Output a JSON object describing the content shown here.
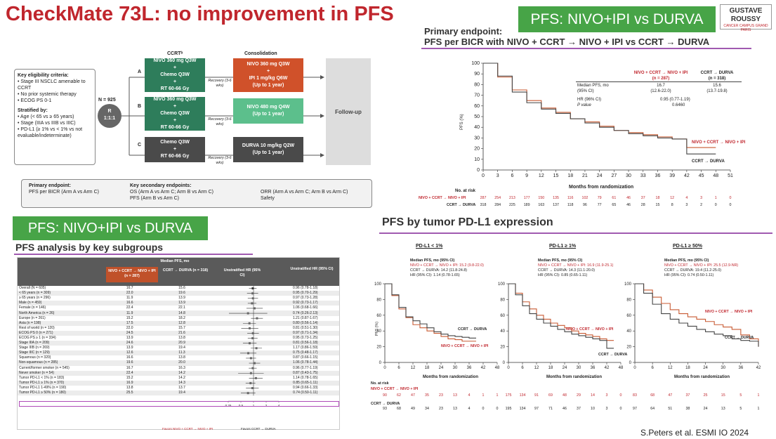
{
  "title": "CheckMate 73L: no improvement in PFS",
  "badge_top": "PFS: NIVO+IPI vs DURVA",
  "badge_left": "PFS: NIVO+IPI vs DURVA",
  "logo": {
    "line1": "GUSTAVE",
    "line2": "ROUSSY",
    "small": "CANCER CAMPUS GRAND PARIS"
  },
  "endpoint": {
    "line1": "Primary endpoint:",
    "line2": "PFS per BICR with NIVO + CCRT → NIVO + IPI vs CCRT → DURVA"
  },
  "design": {
    "criteria_title": "Key eligibility criteria:",
    "criteria": [
      "Stage III NSCLC amenable to CCRT",
      "No prior systemic therapy",
      "ECOG PS 0-1"
    ],
    "strat_title": "Stratified by:",
    "strat": [
      "Age (< 65 vs ≥ 65 years)",
      "Stage (IIIA vs IIIB vs IIIC)",
      "PD-L1 (≥ 1% vs < 1% vs not evaluable/indeterminate)"
    ],
    "n": "N = 925",
    "r": "R",
    "ratio": "1:1:1",
    "ccrt_head": "CCRTᵇ",
    "cons_head": "Consolidation",
    "armA": "A",
    "armB": "B",
    "armC": "C",
    "ccrtA": [
      "NIVO 360 mg Q3W",
      "+",
      "Chemo Q3W",
      "+",
      "RT 60-66 Gy"
    ],
    "ccrtB": [
      "NIVO 360 mg Q3W",
      "+",
      "Chemo Q3W",
      "+",
      "RT 60-66 Gy"
    ],
    "ccrtC": [
      "Chemo Q3W",
      "+",
      "RT 60-66 Gy"
    ],
    "recovery": "Recovery (3-6 wks)",
    "consA": [
      "NIVO 360 mg Q3W",
      "+",
      "IPI 1 mg/kg Q6W",
      "(Up to 1 year)"
    ],
    "consB": [
      "NIVO 480 mg Q4W",
      "(Up to 1 year)"
    ],
    "consC": [
      "DURVA 10 mg/kg Q2W",
      "(Up to 1 year)"
    ],
    "follow": "Follow-up",
    "prim_title": "Primary endpoint:",
    "prim": "PFS per BICR (Arm A vs Arm C)",
    "sec_title": "Key secondary endpoints:",
    "sec1": "OS (Arm A vs Arm C; Arm B vs Arm C)",
    "sec2": "PFS (Arm B vs Arm C)",
    "sec3": "ORR (Arm A vs Arm C; Arm B vs Arm C)",
    "sec4": "Safety"
  },
  "km": {
    "ylabel": "PFS (%)",
    "xlabel": "Months from randomization",
    "col1": "NIVO + CCRT → NIVO + IPI",
    "col1n": "(n = 287)",
    "col2": "CCRT → DURVA",
    "col2n": "(n = 318)",
    "r1": "Median PFS, mo",
    "r1b": "(95% CI)",
    "v1": "16.7",
    "v1b": "(12.6-22.0)",
    "v2": "15.6",
    "v2b": "(13.7-19.8)",
    "hr": "HR (96% CI)",
    "hrv": "0.95 (0.77-1.19)",
    "p": "P value",
    "pv": "0.6460",
    "lab1": "NIVO + CCRT → NIVO + IPI",
    "lab2": "CCRT → DURVA",
    "risk_title": "No. at risk",
    "risk1_label": "NIVO + CCRT → NIVO + IPI",
    "risk2_label": "CCRT → DURVA",
    "risk1": [
      "287",
      "254",
      "213",
      "177",
      "150",
      "135",
      "116",
      "102",
      "79",
      "61",
      "46",
      "37",
      "18",
      "12",
      "4",
      "3",
      "1",
      "0"
    ],
    "risk2": [
      "318",
      "284",
      "225",
      "189",
      "163",
      "137",
      "118",
      "96",
      "77",
      "65",
      "46",
      "28",
      "15",
      "8",
      "3",
      "2",
      "0",
      "0"
    ]
  },
  "subgroups": {
    "title": "PFS analysis by key subgroups",
    "head_median": "Median PFS, mo",
    "head_a": "NIVO + CCRT → NIVO + IPI (n = 287)",
    "head_c": "CCRT → DURVA (n = 318)",
    "head_hr": "Unstratified HR (95% CI)",
    "rows": [
      [
        "Overall (N = 605)",
        "16.7",
        "15.6",
        "0.96 (0.78-1.18)"
      ],
      [
        "< 65 years (n = 309)",
        "22.0",
        "19.6",
        "0.95 (0.70-1.29)"
      ],
      [
        "≥ 65 years (n = 296)",
        "11.9",
        "13.9",
        "0.97 (0.73-1.28)"
      ],
      [
        "Male (n = 459)",
        "16.6",
        "13.9",
        "0.92 (0.73-1.17)"
      ],
      [
        "Female (n = 146)",
        "22.4",
        "22.1",
        "1.06 (0.68-1.66)"
      ],
      [
        "North America (n = 26)",
        "11.9",
        "14.8",
        "0.74 (0.26-2.13)"
      ],
      [
        "Europe (n = 261)",
        "15.2",
        "18.2",
        "1.21 (0.87-1.67)"
      ],
      [
        "Asia (n = 198)",
        "17.5",
        "12.8",
        "0.80 (0.56-1.14)"
      ],
      [
        "Rest of world (n = 120)",
        "22.0",
        "15.7",
        "0.81 (0.51-1.30)"
      ],
      [
        "ECOG PS 0 (n = 271)",
        "24.5",
        "21.6",
        "0.97 (0.71-1.34)"
      ],
      [
        "ECOG PS ≥ 1 (n = 334)",
        "13.9",
        "13.8",
        "0.95 (0.73-1.25)"
      ],
      [
        "Stage IIIA (n = 209)",
        "24.6",
        "20.9",
        "0.81 (0.56-1.18)"
      ],
      [
        "Stage IIIB (n = 269)",
        "13.9",
        "19.4",
        "1.17 (0.86-1.59)"
      ],
      [
        "Stage IIIC (n = 129)",
        "12.6",
        "11.3",
        "0.75 (0.48-1.17)"
      ],
      [
        "Squamous (n = 320)",
        "16.6",
        "13.8",
        "0.87 (0.66-1.15)"
      ],
      [
        "Non-squamous (n = 285)",
        "19.6",
        "20.0",
        "1.06 (0.78-1.44)"
      ],
      [
        "Current/former smoker (n = 545)",
        "16.7",
        "16.3",
        "0.96 (0.77-1.19)"
      ],
      [
        "Never smoker (n = 54)",
        "22.4",
        "14.2",
        "0.87 (0.43-1.75)"
      ],
      [
        "Tumor PD-L1 < 1% (n = 183)",
        "15.2",
        "14.2",
        "1.14 (0.78-1.65)"
      ],
      [
        "Tumor PD-L1 ≥ 1% (n = 370)",
        "16.9",
        "14.3",
        "0.85 (0.65-1.11)"
      ],
      [
        "Tumor PD-L1 1-49% (n = 190)",
        "13.8",
        "13.7",
        "0.94 (0.66-1.33)"
      ],
      [
        "Tumor PD-L1 ≥ 50% (n = 180)",
        "25.5",
        "19.4",
        "0.74 (0.50-1.11)"
      ]
    ],
    "axis": [
      "0.25",
      "0.5",
      "1",
      "2",
      "4"
    ],
    "favor_a": "Favors NIVO + CCRT → NIVO + IPI",
    "favor_c": "Favors CCRT → DURVA"
  },
  "pdl1": {
    "title": "PFS by tumor PD-L1 expression",
    "p1": {
      "head": "PD-L1 < 1%",
      "m": "Median PFS, mo (95% CI)",
      "a": "NIVO + CCRT → NIVO + IPI: 15.2 (9.8-22.0)",
      "c": "CCRT → DURVA: 14.2 (11.8-24.8)",
      "hr": "HR (95% CI): 1.14 (0.78-1.65)",
      "la": "NIVO + CCRT → NIVO + IPI",
      "lc": "CCRT → DURVA"
    },
    "p2": {
      "head": "PD-L1 ≥ 1%",
      "m": "Median PFS, mo (95% CI)",
      "a": "NIVO + CCRT → NIVO + IPI: 16.9 (11.9-25.1)",
      "c": "CCRT → DURVA: 14.3 (11.1-20.0)",
      "hr": "HR (95% CI): 0.85 (0.65-1.11)",
      "la": "NIVO + CCRT → NIVO + IPI",
      "lc": "CCRT → DURVA"
    },
    "p3": {
      "head": "PD-L1 ≥ 50%",
      "m": "Median PFS, mo (95% CI)",
      "a": "NIVO + CCRT → NIVO + IPI: 25.5 (12.9-NR)",
      "c": "CCRT → DURVA: 19.4 (11.2-25.0)",
      "hr": "HR (95% CI): 0.74 (0.50-1.11)",
      "la": "NIVO + CCRT → NIVO + IPI",
      "lc": "CCRT → DURVA"
    },
    "ylabel": "PFS (%)",
    "xlabel": "Months from randomization",
    "risk_title": "No. at risk",
    "risk_a": "NIVO + CCRT → NIVO + IPI",
    "risk_c": "CCRT → DURVA",
    "ra1": [
      "90",
      "62",
      "47",
      "35",
      "23",
      "13",
      "4",
      "1",
      "1"
    ],
    "rc1": [
      "93",
      "68",
      "49",
      "34",
      "23",
      "13",
      "4",
      "0",
      "0"
    ],
    "ra2": [
      "175",
      "134",
      "91",
      "69",
      "48",
      "29",
      "14",
      "3",
      "0"
    ],
    "rc2": [
      "195",
      "134",
      "97",
      "71",
      "46",
      "37",
      "10",
      "3",
      "0"
    ],
    "ra3": [
      "83",
      "68",
      "47",
      "37",
      "25",
      "15",
      "5",
      "1"
    ],
    "rc3": [
      "97",
      "64",
      "51",
      "38",
      "24",
      "13",
      "5",
      "1"
    ]
  },
  "citation": "S.Peters et al. ESMI IO 2024",
  "chart_data": [
    {
      "type": "line",
      "title": "PFS per BICR with NIVO + CCRT → NIVO + IPI vs CCRT → DURVA",
      "xlabel": "Months from randomization",
      "ylabel": "PFS (%)",
      "xlim": [
        0,
        51
      ],
      "ylim": [
        0,
        100
      ],
      "x": [
        0,
        3,
        6,
        9,
        12,
        15,
        18,
        21,
        24,
        27,
        30,
        33,
        36,
        39,
        42,
        45,
        48
      ],
      "series": [
        {
          "name": "NIVO + CCRT → NIVO + IPI",
          "values": [
            100,
            87,
            75,
            65,
            58,
            54,
            48,
            45,
            41,
            37,
            35,
            33,
            31,
            29,
            21,
            21,
            21
          ]
        },
        {
          "name": "CCRT → DURVA",
          "values": [
            100,
            88,
            73,
            63,
            57,
            53,
            48,
            44,
            40,
            37,
            34,
            32,
            30,
            29,
            15,
            15,
            15
          ]
        }
      ]
    },
    {
      "type": "line",
      "title": "PD-L1 < 1%",
      "xlim": [
        0,
        48
      ],
      "ylim": [
        0,
        100
      ],
      "x": [
        0,
        3,
        6,
        9,
        12,
        15,
        18,
        21,
        24,
        27,
        30,
        33,
        36,
        39
      ],
      "series": [
        {
          "name": "NIVO + CCRT → NIVO + IPI",
          "values": [
            100,
            85,
            68,
            57,
            48,
            44,
            40,
            37,
            33,
            30,
            29,
            27,
            27,
            27
          ]
        },
        {
          "name": "CCRT → DURVA",
          "values": [
            100,
            86,
            70,
            58,
            53,
            49,
            44,
            39,
            36,
            34,
            33,
            32,
            31,
            31
          ]
        }
      ]
    },
    {
      "type": "line",
      "title": "PD-L1 ≥ 1%",
      "xlim": [
        0,
        48
      ],
      "ylim": [
        0,
        100
      ],
      "x": [
        0,
        3,
        6,
        9,
        12,
        15,
        18,
        21,
        24,
        27,
        30,
        33,
        36,
        39,
        42,
        45
      ],
      "series": [
        {
          "name": "NIVO + CCRT → NIVO + IPI",
          "values": [
            100,
            88,
            77,
            68,
            60,
            55,
            50,
            47,
            44,
            40,
            37,
            35,
            33,
            30,
            28,
            28
          ]
        },
        {
          "name": "CCRT → DURVA",
          "values": [
            100,
            86,
            72,
            62,
            55,
            50,
            46,
            42,
            39,
            36,
            34,
            32,
            30,
            28,
            18,
            18
          ]
        }
      ]
    },
    {
      "type": "line",
      "title": "PD-L1 ≥ 50%",
      "xlim": [
        0,
        42
      ],
      "ylim": [
        0,
        100
      ],
      "x": [
        0,
        3,
        6,
        9,
        12,
        15,
        18,
        21,
        24,
        27,
        30,
        33,
        36,
        39,
        42
      ],
      "series": [
        {
          "name": "NIVO + CCRT → NIVO + IPI",
          "values": [
            100,
            92,
            83,
            75,
            67,
            62,
            58,
            55,
            52,
            48,
            45,
            42,
            35,
            30,
            20
          ]
        },
        {
          "name": "CCRT → DURVA",
          "values": [
            100,
            88,
            74,
            62,
            55,
            50,
            46,
            42,
            39,
            36,
            34,
            30,
            28,
            27,
            20
          ]
        }
      ]
    }
  ]
}
